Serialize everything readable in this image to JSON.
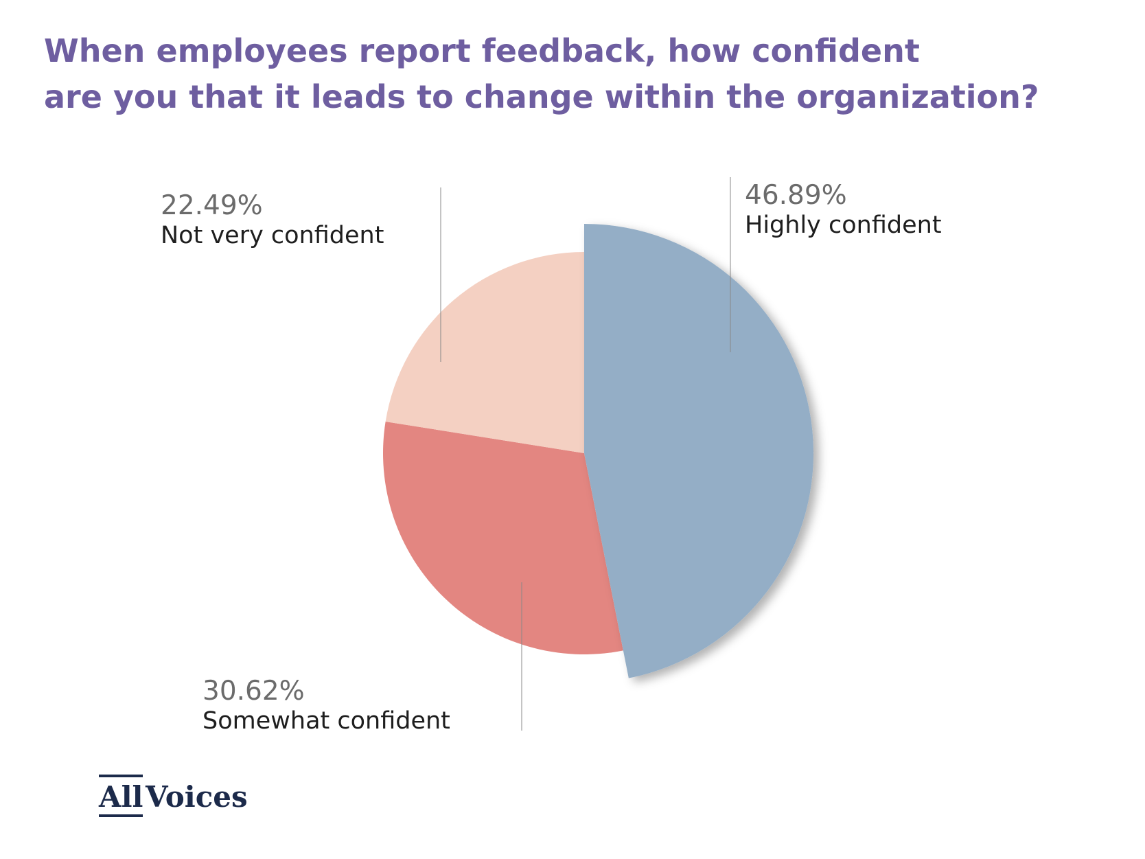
{
  "chart_data": {
    "type": "pie",
    "title": [
      "When employees report feedback, how confident",
      "are you that it leads to change within the organization?"
    ],
    "categories": [
      "Highly confident",
      "Somewhat confident",
      "Not very confident"
    ],
    "values": [
      46.89,
      30.62,
      22.49
    ],
    "value_labels": [
      "46.89%",
      "30.62%",
      "22.49%"
    ],
    "colors": [
      "#94aec6",
      "#e38681",
      "#f4d0c2"
    ]
  },
  "logo": [
    "All",
    "Voices"
  ]
}
